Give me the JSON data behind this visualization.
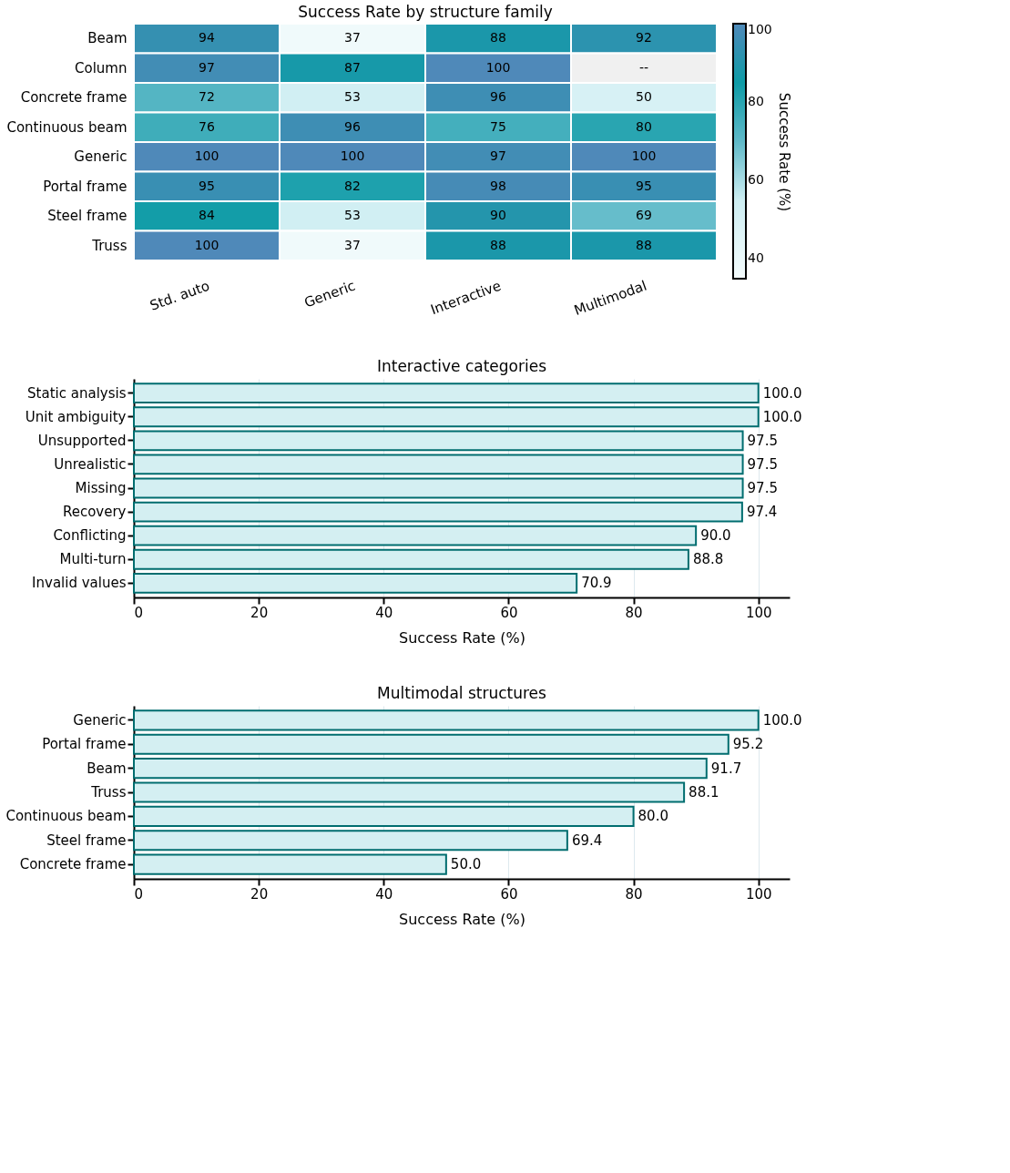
{
  "chart_data": [
    {
      "type": "heatmap",
      "title": "Success Rate by structure family",
      "clabel": "Success Rate (%)",
      "categories": [
        "Std. auto",
        "Generic",
        "Interactive",
        "Multimodal"
      ],
      "y_categories": [
        "Beam",
        "Column",
        "Concrete frame",
        "Continuous beam",
        "Generic",
        "Portal frame",
        "Steel frame",
        "Truss"
      ],
      "cells": [
        [
          94,
          37,
          88,
          92
        ],
        [
          97,
          87,
          100,
          null
        ],
        [
          72,
          53,
          96,
          50
        ],
        [
          76,
          96,
          75,
          80
        ],
        [
          100,
          100,
          97,
          100
        ],
        [
          95,
          82,
          98,
          95
        ],
        [
          84,
          53,
          90,
          69
        ],
        [
          100,
          37,
          88,
          88
        ]
      ],
      "cell_labels": [
        [
          "94",
          "37",
          "88",
          "92"
        ],
        [
          "97",
          "87",
          "100",
          "--"
        ],
        [
          "72",
          "53",
          "96",
          "50"
        ],
        [
          "76",
          "96",
          "75",
          "80"
        ],
        [
          "100",
          "100",
          "97",
          "100"
        ],
        [
          "95",
          "82",
          "98",
          "95"
        ],
        [
          "84",
          "53",
          "90",
          "69"
        ],
        [
          "100",
          "37",
          "88",
          "88"
        ]
      ],
      "clim": [
        35,
        100
      ],
      "cticks": [
        40,
        60,
        80,
        100
      ]
    },
    {
      "type": "bar",
      "orientation": "horizontal",
      "title": "Interactive categories",
      "xlabel": "Success Rate (%)",
      "categories": [
        "Static analysis",
        "Unit ambiguity",
        "Unsupported",
        "Unrealistic",
        "Missing",
        "Recovery",
        "Conflicting",
        "Multi-turn",
        "Invalid values"
      ],
      "values": [
        100.0,
        100.0,
        97.5,
        97.5,
        97.5,
        97.4,
        90.0,
        88.8,
        70.9
      ],
      "value_labels": [
        "100.0",
        "100.0",
        "97.5",
        "97.5",
        "97.5",
        "97.4",
        "90.0",
        "88.8",
        "70.9"
      ],
      "color": "#d4eff2",
      "xlim": [
        0,
        105
      ],
      "xticks": [
        0,
        20,
        40,
        60,
        80,
        100
      ],
      "grid": "x"
    },
    {
      "type": "bar",
      "orientation": "horizontal",
      "title": "Multimodal structures",
      "xlabel": "Success Rate (%)",
      "categories": [
        "Generic",
        "Portal frame",
        "Beam",
        "Truss",
        "Continuous beam",
        "Steel frame",
        "Concrete frame"
      ],
      "values": [
        100.0,
        95.2,
        91.7,
        88.1,
        80.0,
        69.4,
        50.0
      ],
      "value_labels": [
        "100.0",
        "95.2",
        "91.7",
        "88.1",
        "80.0",
        "69.4",
        "50.0"
      ],
      "color": "#d4eff2",
      "xlim": [
        0,
        105
      ],
      "xticks": [
        0,
        20,
        40,
        60,
        80,
        100
      ],
      "grid": "x"
    }
  ]
}
